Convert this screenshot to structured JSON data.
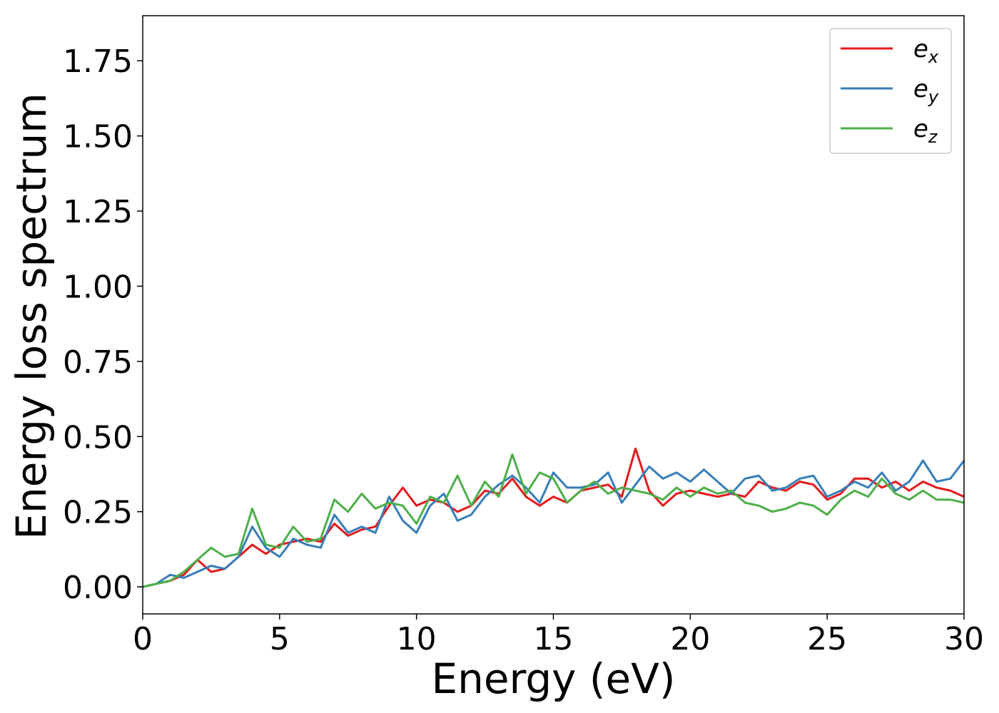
{
  "chart_data": {
    "type": "line",
    "xlabel": "Energy (eV)",
    "ylabel": "Energy loss spectrum",
    "xlim": [
      0,
      30
    ],
    "ylim": [
      -0.09,
      1.9
    ],
    "x_ticks": [
      0,
      5,
      10,
      15,
      20,
      25,
      30
    ],
    "y_ticks": [
      0.0,
      0.25,
      0.5,
      0.75,
      1.0,
      1.25,
      1.5,
      1.75
    ],
    "x_tick_labels": [
      "0",
      "5",
      "10",
      "15",
      "20",
      "25",
      "30"
    ],
    "y_tick_labels": [
      "0.00",
      "0.25",
      "0.50",
      "0.75",
      "1.00",
      "1.25",
      "1.50",
      "1.75"
    ],
    "grid": false,
    "legend_position": "top-right",
    "x": [
      0,
      0.5,
      1,
      1.5,
      2,
      2.5,
      3,
      3.5,
      4,
      4.5,
      5,
      5.5,
      6,
      6.5,
      7,
      7.5,
      8,
      8.5,
      9,
      9.5,
      10,
      10.5,
      11,
      11.5,
      12,
      12.5,
      13,
      13.5,
      14,
      14.5,
      15,
      15.5,
      16,
      16.5,
      17,
      17.5,
      18,
      18.5,
      19,
      19.5,
      20,
      20.5,
      21,
      21.5,
      22,
      22.5,
      23,
      23.5,
      24,
      24.5,
      25,
      25.5,
      26,
      26.5,
      27,
      27.5,
      28,
      28.5,
      29,
      29.5,
      30
    ],
    "series": [
      {
        "name": "e",
        "name_subscript": "x",
        "color": "#e41a1c",
        "values": [
          0.0,
          0.01,
          0.02,
          0.04,
          0.09,
          0.05,
          0.06,
          0.1,
          0.14,
          0.11,
          0.14,
          0.15,
          0.16,
          0.15,
          0.21,
          0.17,
          0.19,
          0.2,
          0.27,
          0.33,
          0.27,
          0.29,
          0.28,
          0.25,
          0.27,
          0.32,
          0.31,
          0.36,
          0.3,
          0.27,
          0.3,
          0.28,
          0.32,
          0.33,
          0.34,
          0.3,
          0.46,
          0.32,
          0.27,
          0.31,
          0.32,
          0.31,
          0.3,
          0.31,
          0.3,
          0.35,
          0.33,
          0.32,
          0.35,
          0.34,
          0.29,
          0.31,
          0.36,
          0.36,
          0.33,
          0.35,
          0.32,
          0.35,
          0.33,
          0.32,
          0.3
        ]
      },
      {
        "name": "e",
        "name_subscript": "y",
        "color": "#377eb8",
        "values": [
          0.0,
          0.01,
          0.04,
          0.03,
          0.05,
          0.07,
          0.06,
          0.1,
          0.2,
          0.13,
          0.1,
          0.16,
          0.14,
          0.13,
          0.24,
          0.18,
          0.2,
          0.18,
          0.3,
          0.22,
          0.18,
          0.27,
          0.31,
          0.22,
          0.24,
          0.3,
          0.34,
          0.37,
          0.33,
          0.28,
          0.38,
          0.33,
          0.33,
          0.34,
          0.38,
          0.28,
          0.34,
          0.4,
          0.36,
          0.38,
          0.35,
          0.39,
          0.35,
          0.31,
          0.36,
          0.37,
          0.32,
          0.33,
          0.36,
          0.37,
          0.3,
          0.32,
          0.35,
          0.33,
          0.38,
          0.32,
          0.35,
          0.42,
          0.35,
          0.36,
          0.42
        ]
      },
      {
        "name": "e",
        "name_subscript": "z",
        "color": "#4daf4a",
        "values": [
          0.0,
          0.01,
          0.02,
          0.05,
          0.09,
          0.13,
          0.1,
          0.11,
          0.26,
          0.14,
          0.13,
          0.2,
          0.15,
          0.16,
          0.29,
          0.25,
          0.31,
          0.26,
          0.28,
          0.27,
          0.21,
          0.3,
          0.28,
          0.37,
          0.27,
          0.35,
          0.3,
          0.44,
          0.31,
          0.38,
          0.36,
          0.28,
          0.32,
          0.35,
          0.31,
          0.33,
          0.32,
          0.31,
          0.29,
          0.33,
          0.3,
          0.33,
          0.31,
          0.32,
          0.28,
          0.27,
          0.25,
          0.26,
          0.28,
          0.27,
          0.24,
          0.29,
          0.32,
          0.3,
          0.36,
          0.31,
          0.29,
          0.32,
          0.29,
          0.29,
          0.28
        ]
      }
    ]
  }
}
